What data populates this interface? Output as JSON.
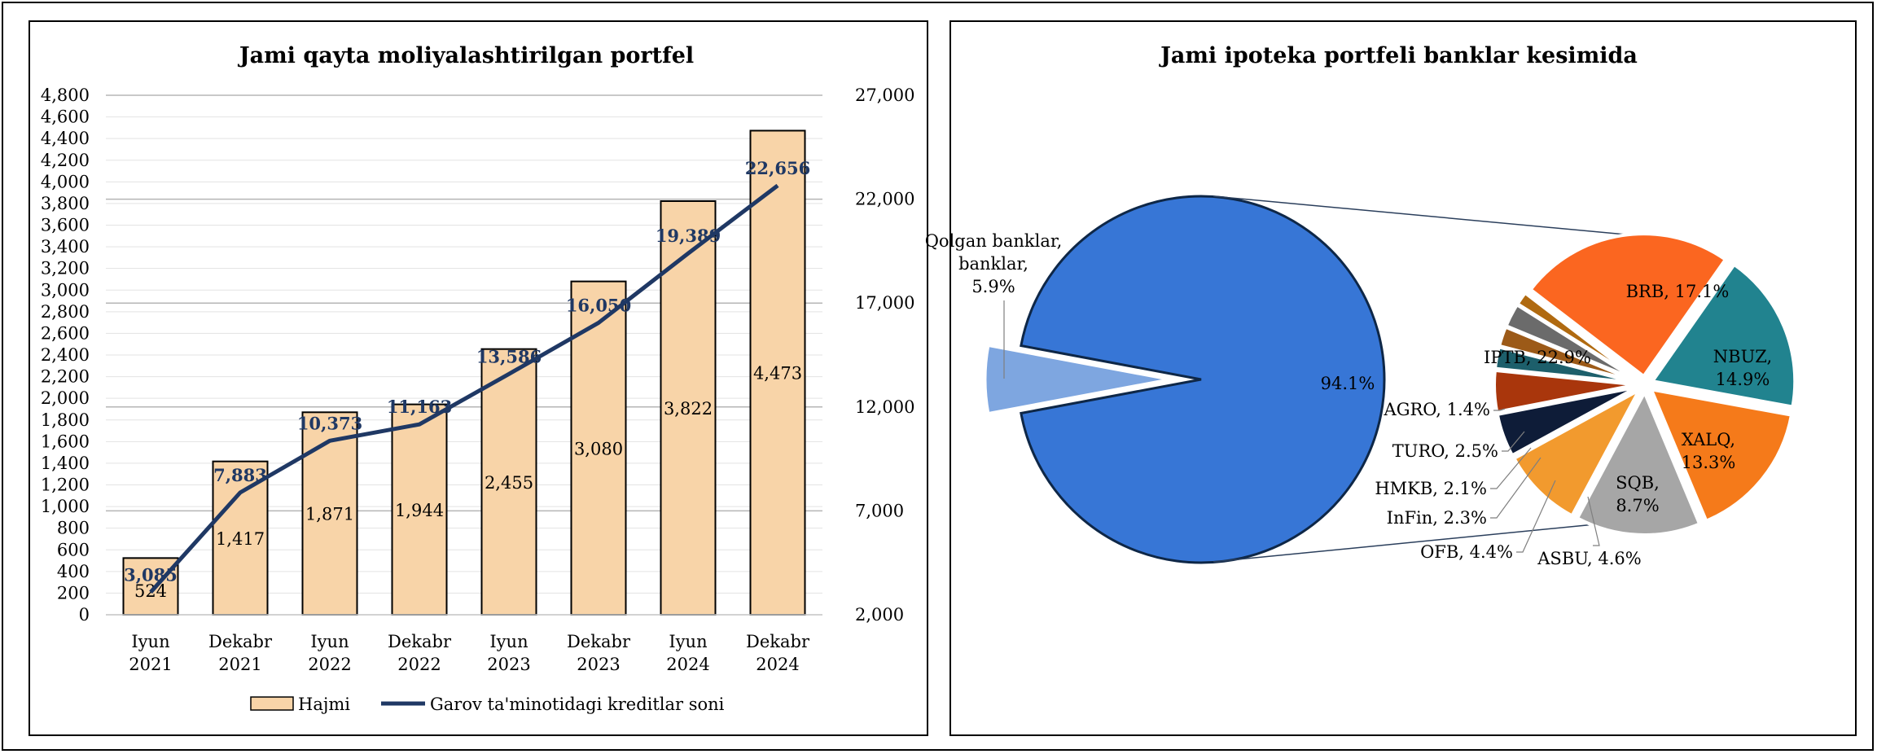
{
  "chart_data": [
    {
      "type": "bar",
      "title": "Jami qayta moliyalashtirilgan portfel",
      "categories": [
        [
          "Iyun",
          "2021"
        ],
        [
          "Dekabr",
          "2021"
        ],
        [
          "Iyun",
          "2022"
        ],
        [
          "Dekabr",
          "2022"
        ],
        [
          "Iyun",
          "2023"
        ],
        [
          "Dekabr",
          "2023"
        ],
        [
          "Iyun",
          "2024"
        ],
        [
          "Dekabr",
          "2024"
        ]
      ],
      "ylim": [
        0,
        4800
      ],
      "yticks": [
        "0",
        "200",
        "400",
        "600",
        "800",
        "1,000",
        "1,200",
        "1,400",
        "1,600",
        "1,800",
        "2,000",
        "2,200",
        "2,400",
        "2,600",
        "2,800",
        "3,000",
        "3,200",
        "3,400",
        "3,600",
        "3,800",
        "4,000",
        "4,200",
        "4,400",
        "4,600",
        "4,800"
      ],
      "y2lim": [
        2000,
        27000
      ],
      "y2ticks": [
        "2,000",
        "7,000",
        "12,000",
        "17,000",
        "22,000",
        "27,000"
      ],
      "series": [
        {
          "name": "Hajmi",
          "type": "bar",
          "axis": "left",
          "values": [
            524,
            1417,
            1871,
            1944,
            2455,
            3080,
            3822,
            4473
          ],
          "labels": [
            "524",
            "1,417",
            "1,871",
            "1,944",
            "2,455",
            "3,080",
            "3,822",
            "4,473"
          ],
          "color": "#f8d4a8"
        },
        {
          "name": "Garov ta'minotidagi kreditlar soni",
          "type": "line",
          "axis": "right",
          "values": [
            3085,
            7883,
            10373,
            11163,
            13586,
            16050,
            19389,
            22656
          ],
          "labels": [
            "3,085",
            "7,883",
            "10,373",
            "11,163",
            "13,586",
            "16,050",
            "19,389",
            "22,656"
          ],
          "color": "#1f3864"
        }
      ],
      "legend": "bottom",
      "grid": true
    },
    {
      "type": "pie",
      "subtype": "bar-of-pie",
      "title": "Jami ipoteka portfeli banklar kesimida",
      "main": [
        {
          "label": "Qolgan banklar,",
          "label2": "5.9%",
          "value": 5.9,
          "color": "#7ea6e0"
        },
        {
          "label": "",
          "label2": "94.1%",
          "value": 94.1,
          "color": "#3776d6"
        }
      ],
      "breakdown": [
        {
          "label": "BRB, 17.1%",
          "value": 17.1,
          "color": "#21838f"
        },
        {
          "label": "NBUZ, 14.9%",
          "value": 14.9,
          "color": "#f57a1a"
        },
        {
          "label": "XALQ, 13.3%",
          "value": 13.3,
          "color": "#a6a6a6"
        },
        {
          "label": "SQB, 8.7%",
          "value": 8.7,
          "color": "#f29a2e"
        },
        {
          "label": "ASBU, 4.6%",
          "value": 4.6,
          "color": "#0e1c38"
        },
        {
          "label": "OFB, 4.4%",
          "value": 4.4,
          "color": "#a9360c"
        },
        {
          "label": "InFin, 2.3%",
          "value": 2.3,
          "color": "#1d5f6b"
        },
        {
          "label": "HMKB, 2.1%",
          "value": 2.1,
          "color": "#9c5a18"
        },
        {
          "label": "TURO, 2.5%",
          "value": 2.5,
          "color": "#6b6b6b"
        },
        {
          "label": "AGRO, 1.4%",
          "value": 1.4,
          "color": "#b06a10"
        },
        {
          "label": "IPTB, 22.9%",
          "value": 22.9,
          "color": "#fb6620"
        }
      ]
    }
  ]
}
